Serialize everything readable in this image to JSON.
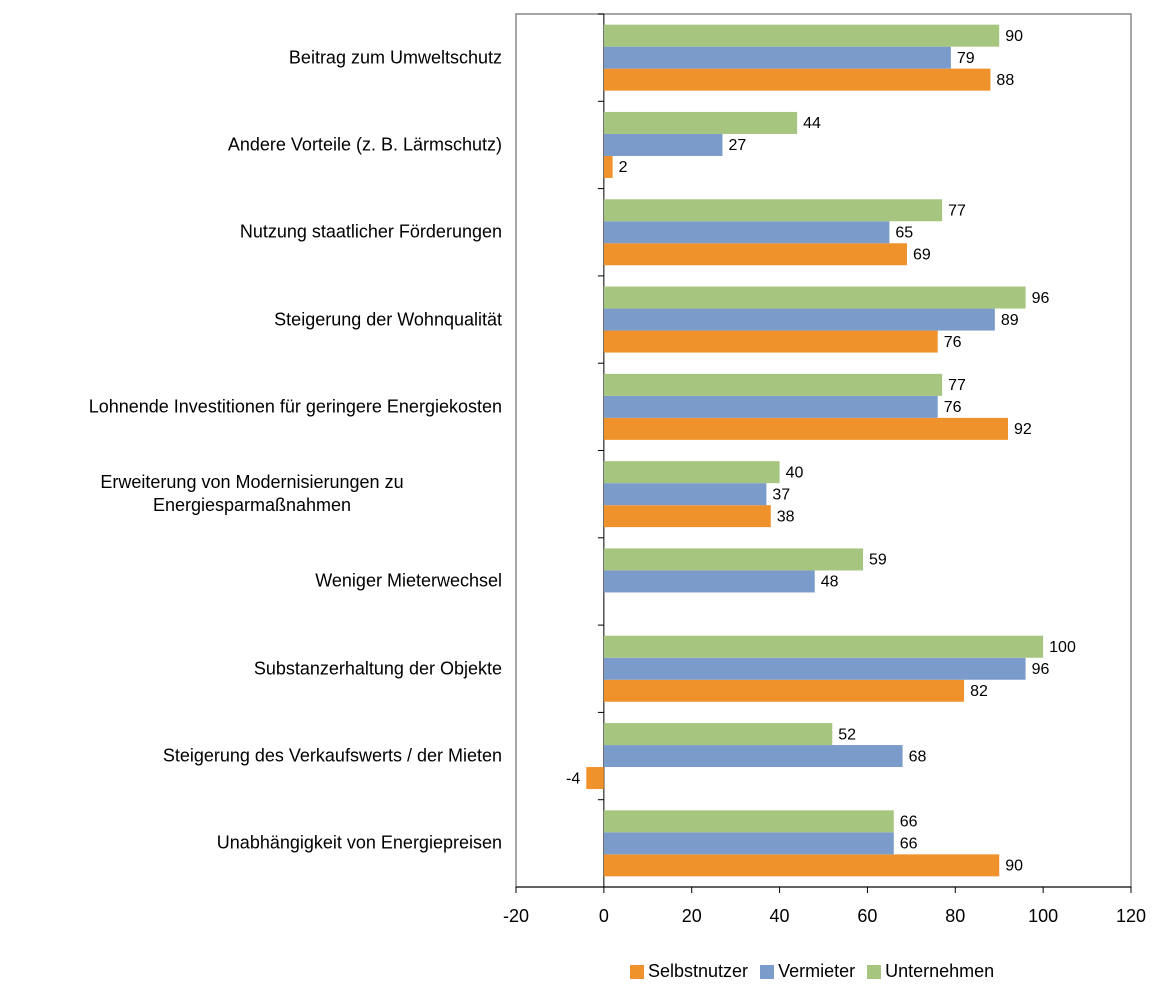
{
  "chart_data": {
    "type": "barh",
    "categories": [
      "Beitrag zum Umweltschutz",
      "Andere Vorteile (z. B. Lärmschutz)",
      "Nutzung staatlicher Förderungen",
      "Steigerung der Wohnqualität",
      "Lohnende Investitionen für geringere Energiekosten",
      "Erweiterung von Modernisierungen zu Energiesparmaßnahmen",
      "Weniger Mieterwechsel",
      "Substanzerhaltung der Objekte",
      "Steigerung des Verkaufswerts / der Mieten",
      "Unabhängigkeit von Energiepreisen"
    ],
    "series": [
      {
        "name": "Selbstnutzer",
        "color": "#f0922b",
        "values": [
          88,
          2,
          69,
          76,
          92,
          38,
          null,
          82,
          -4,
          90
        ]
      },
      {
        "name": "Vermieter",
        "color": "#7b9bcb",
        "values": [
          79,
          27,
          65,
          89,
          76,
          37,
          48,
          96,
          68,
          66
        ]
      },
      {
        "name": "Unternehmen",
        "color": "#a6c57f",
        "values": [
          90,
          44,
          77,
          96,
          77,
          40,
          59,
          100,
          52,
          66
        ]
      }
    ],
    "xlim": [
      -20,
      120
    ],
    "xticks": [
      -20,
      0,
      20,
      40,
      60,
      80,
      100,
      120
    ],
    "legend": "bottom"
  }
}
